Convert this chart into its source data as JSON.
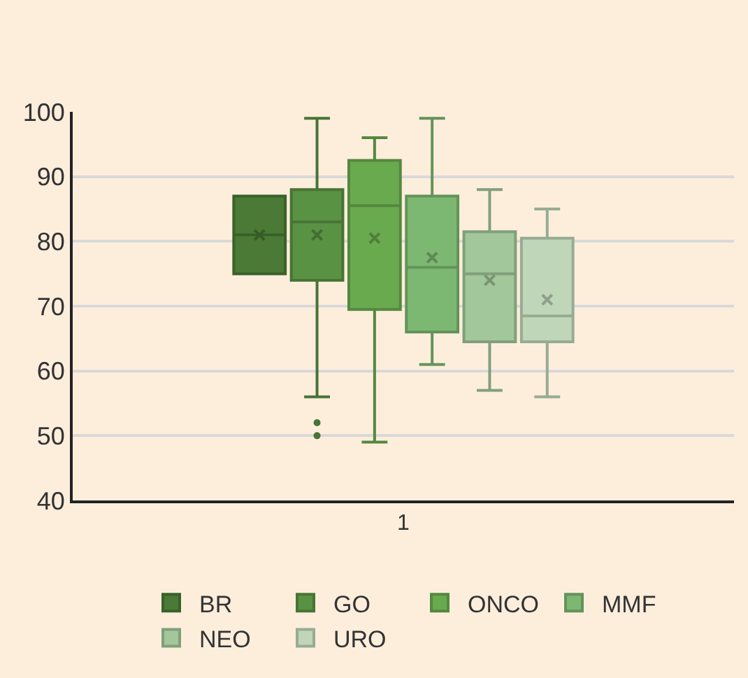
{
  "chart_data": {
    "type": "box",
    "categories": [
      "1"
    ],
    "ylim": [
      40,
      100
    ],
    "yticks": [
      40,
      50,
      60,
      70,
      80,
      90,
      100
    ],
    "grid": "y",
    "legend": "bottom",
    "series": [
      {
        "name": "BR",
        "color": "#4a7a35",
        "boxes": [
          {
            "low": 75,
            "q1": 75,
            "median": 81,
            "q3": 87,
            "high": 87,
            "mean": 81
          }
        ]
      },
      {
        "name": "GO",
        "color": "#5a9243",
        "boxes": [
          {
            "low": 56,
            "q1": 74,
            "median": 83,
            "q3": 88,
            "high": 99,
            "mean": 81,
            "outliers": [
              52,
              50
            ]
          }
        ]
      },
      {
        "name": "ONCO",
        "color": "#6aaa4f",
        "boxes": [
          {
            "low": 49,
            "q1": 69.5,
            "median": 85.5,
            "q3": 92.5,
            "high": 96,
            "mean": 80.5
          }
        ]
      },
      {
        "name": "MMF",
        "color": "#7db872",
        "boxes": [
          {
            "low": 61,
            "q1": 66,
            "median": 76,
            "q3": 87,
            "high": 99,
            "mean": 77.5
          }
        ]
      },
      {
        "name": "NEO",
        "color": "#a2c79a",
        "boxes": [
          {
            "low": 57,
            "q1": 64.5,
            "median": 75,
            "q3": 81.5,
            "high": 88,
            "mean": 74
          }
        ]
      },
      {
        "name": "URO",
        "color": "#bfd6b8",
        "boxes": [
          {
            "low": 56,
            "q1": 64.5,
            "median": 68.5,
            "q3": 80.5,
            "high": 85,
            "mean": 71
          }
        ]
      }
    ]
  }
}
